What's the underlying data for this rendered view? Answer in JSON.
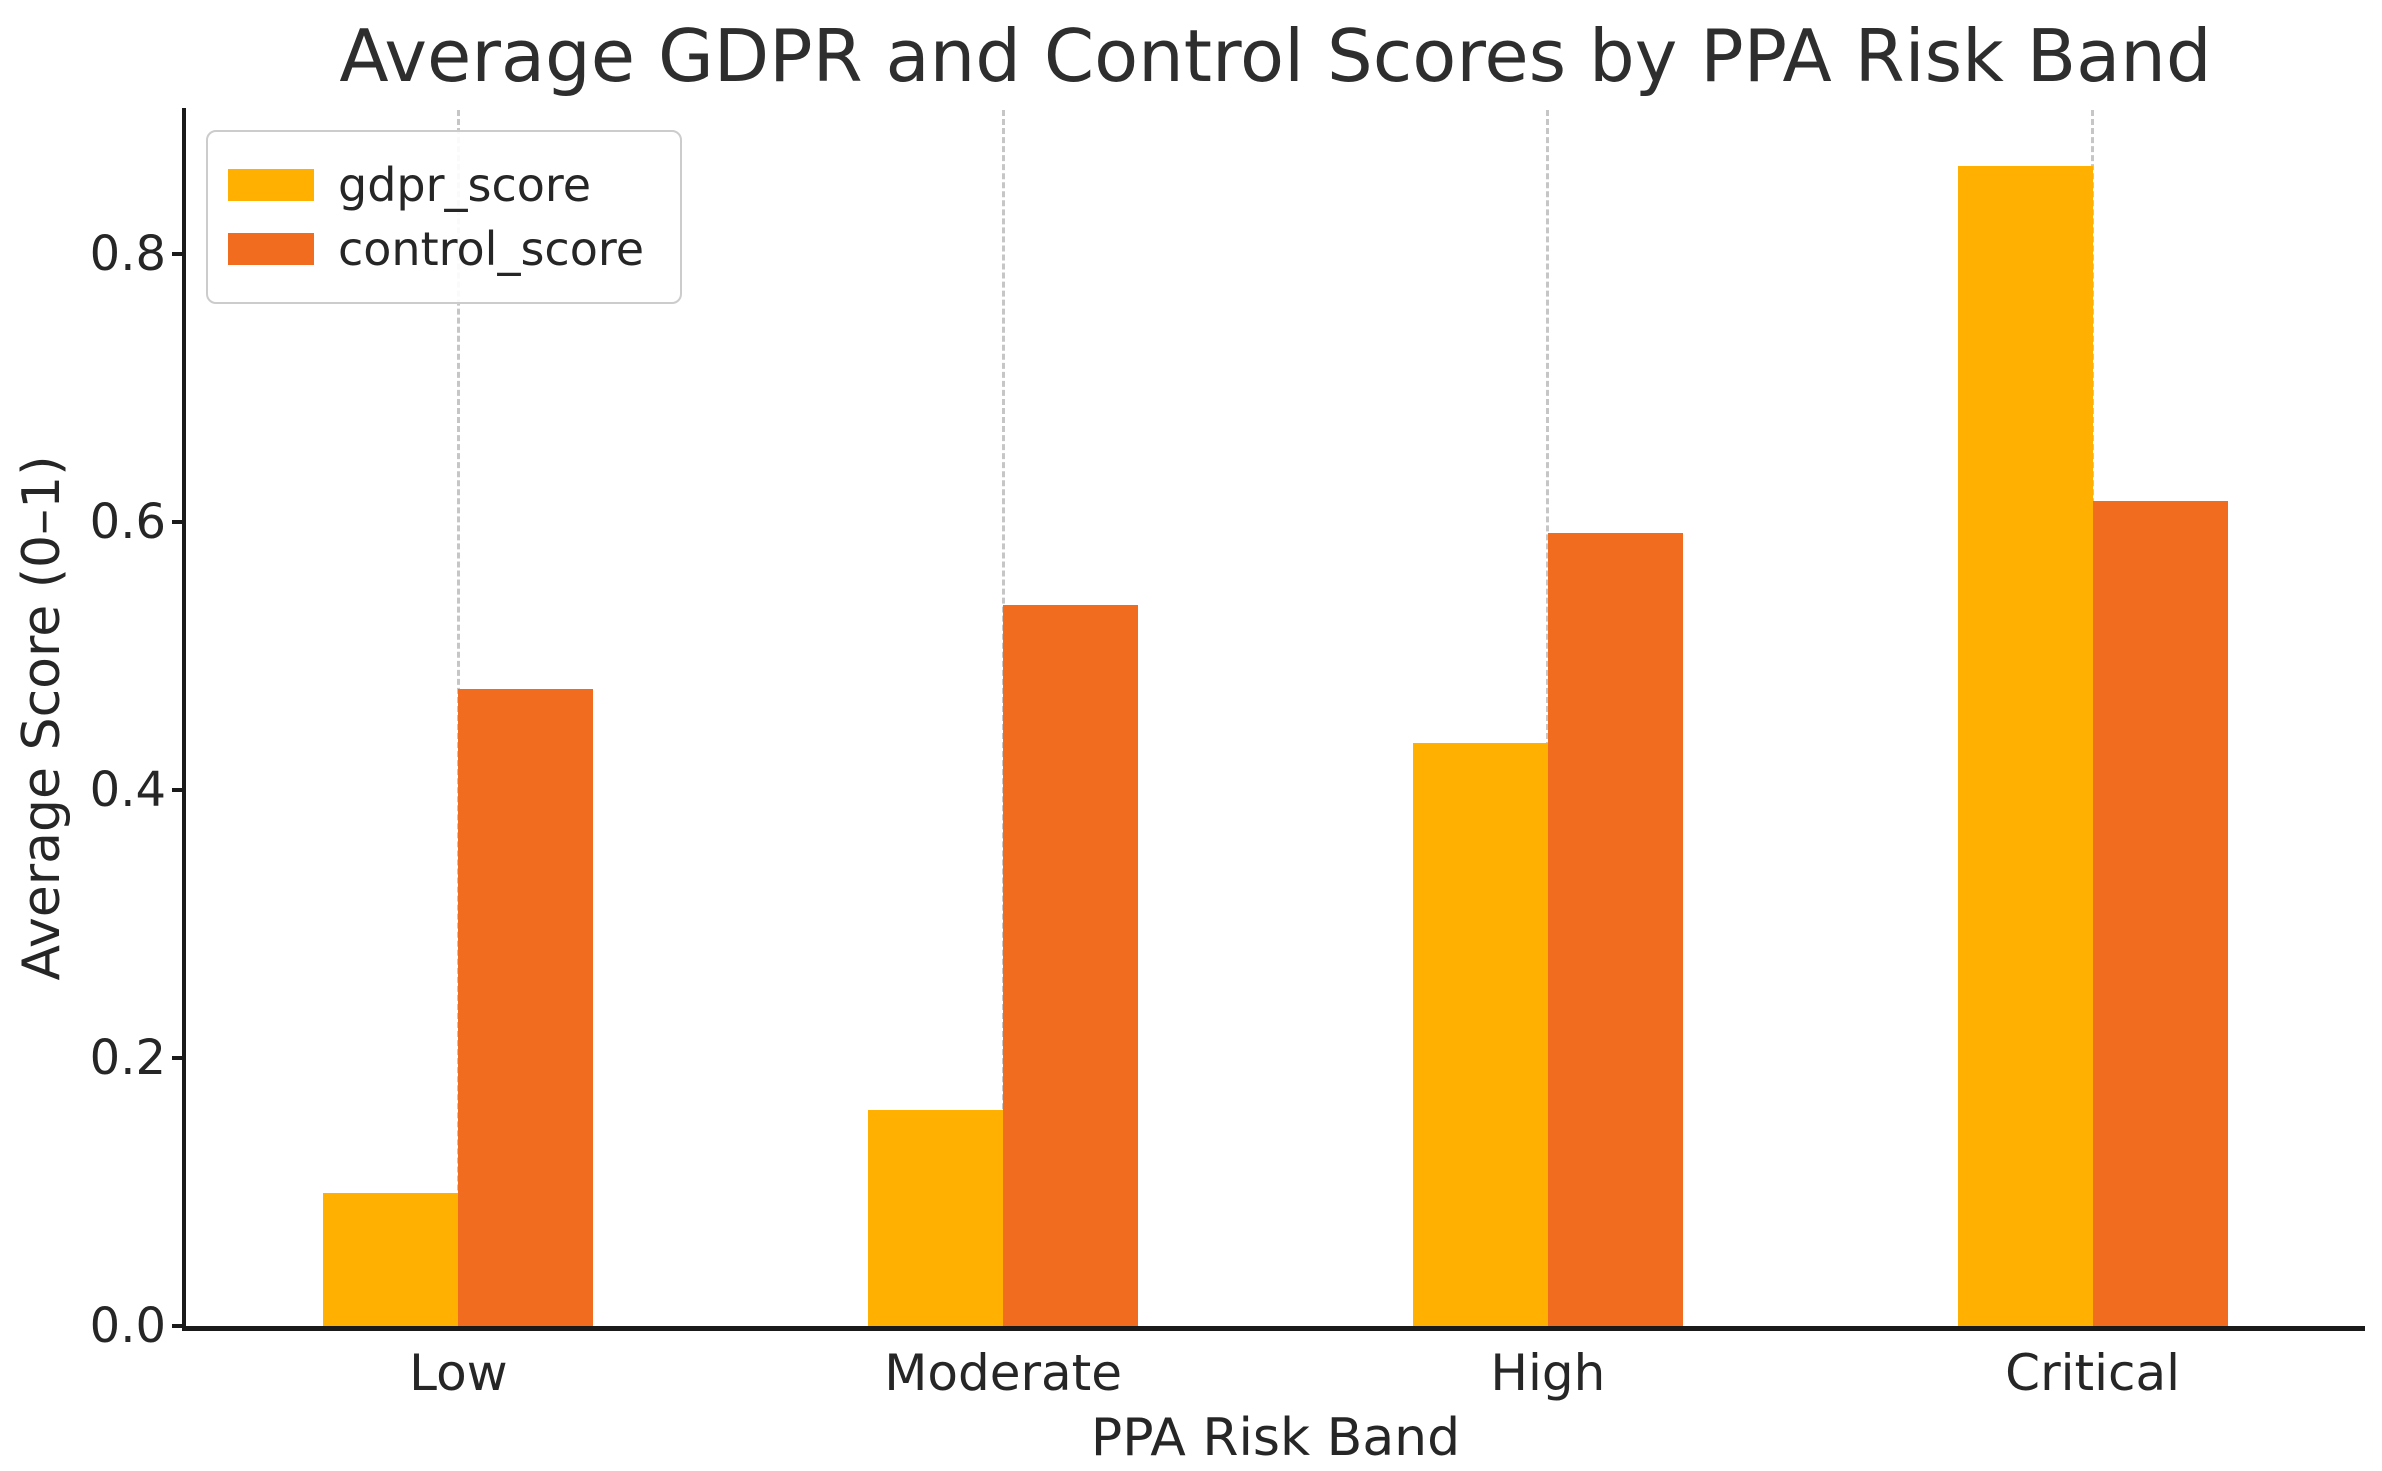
{
  "chart_data": {
    "type": "bar",
    "title": "Average GDPR and Control Scores by PPA Risk Band",
    "xlabel": "PPA Risk Band",
    "ylabel": "Average Score (0–1)",
    "categories": [
      "Low",
      "Moderate",
      "High",
      "Critical"
    ],
    "series": [
      {
        "name": "gdpr_score",
        "color": "#FFB000",
        "values": [
          0.099,
          0.161,
          0.435,
          0.866
        ]
      },
      {
        "name": "control_score",
        "color": "#F26C1F",
        "values": [
          0.475,
          0.538,
          0.592,
          0.616
        ]
      }
    ],
    "yticks": [
      0.0,
      0.2,
      0.4,
      0.6,
      0.8
    ],
    "ytick_labels": [
      "0.0",
      "0.2",
      "0.4",
      "0.6",
      "0.8"
    ],
    "ylim": [
      0,
      0.907
    ],
    "grid": "vertical-dashed-at-category-centers",
    "legend_position": "upper-left",
    "spines": [
      "left",
      "bottom"
    ]
  }
}
